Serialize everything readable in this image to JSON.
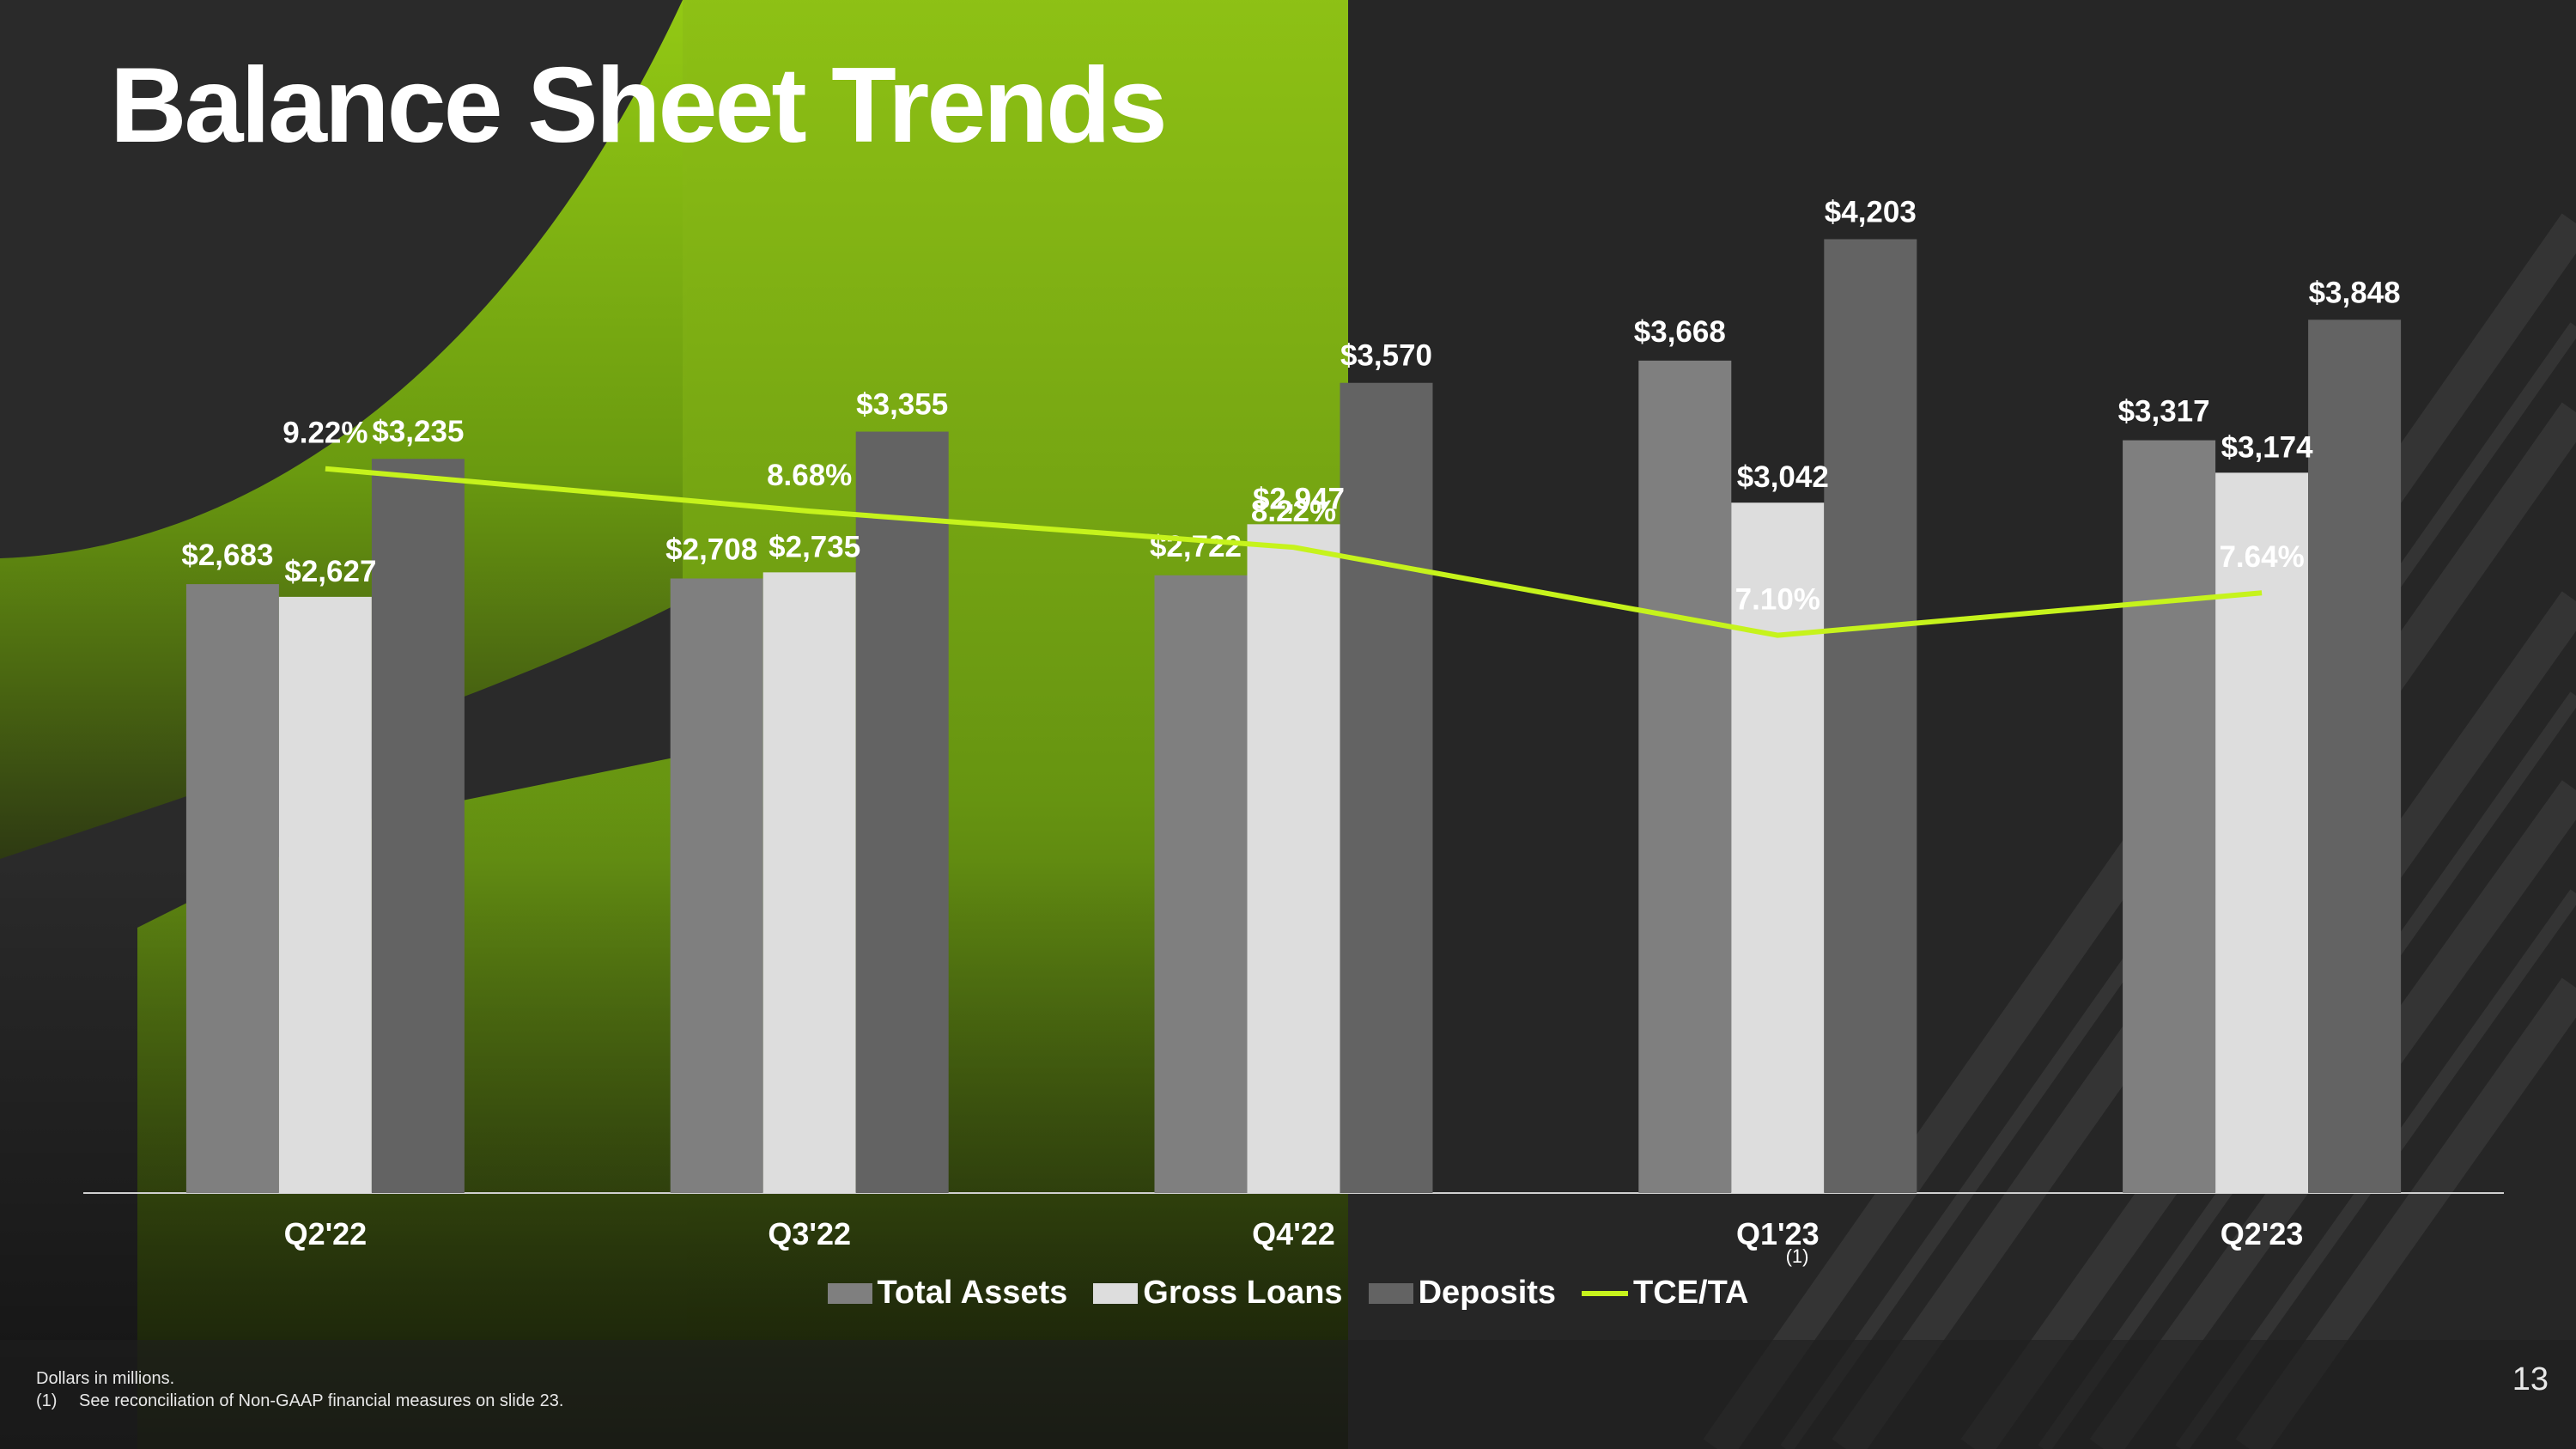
{
  "slide": {
    "title": "Balance Sheet Trends",
    "page_number": "13",
    "footnotes": [
      {
        "marker": "",
        "text": "Dollars in millions."
      },
      {
        "marker": "(1)",
        "text": "See reconciliation of Non-GAAP financial measures on slide 23."
      }
    ]
  },
  "colors": {
    "accent_green": "#8fc418",
    "line_green": "#c6f31c",
    "total_assets": "#7f7f7f",
    "gross_loans": "#dddddd",
    "deposits": "#636363"
  },
  "chart_data": {
    "type": "bar",
    "categories": [
      "Q2'22",
      "Q3'22",
      "Q4'22",
      "Q1'23",
      "Q2'23"
    ],
    "series": [
      {
        "name": "Total Assets",
        "values": [
          2683,
          2708,
          2722,
          3668,
          3317
        ],
        "labels": [
          "$2,683",
          "$2,708",
          "$2,722",
          "$3,668",
          "$3,317"
        ]
      },
      {
        "name": "Gross Loans",
        "values": [
          2627,
          2735,
          2947,
          3042,
          3174
        ],
        "labels": [
          "$2,627",
          "$2,735",
          "$2,947",
          "$3,042",
          "$3,174"
        ]
      },
      {
        "name": "Deposits",
        "values": [
          3235,
          3355,
          3570,
          4203,
          3848
        ],
        "labels": [
          "$3,235",
          "$3,355",
          "$3,570",
          "$4,203",
          "$3,848"
        ]
      }
    ],
    "line_series": {
      "name": "TCE/TA",
      "values": [
        9.22,
        8.68,
        8.22,
        7.1,
        7.64
      ],
      "labels": [
        "9.22%",
        "8.68%",
        "8.22%",
        "7.10%",
        "7.64%"
      ],
      "superscript": "(1)"
    },
    "ylim": [
      0,
      4500
    ],
    "y2lim": [
      0,
      13
    ],
    "grid": false,
    "legend_position": "bottom"
  }
}
